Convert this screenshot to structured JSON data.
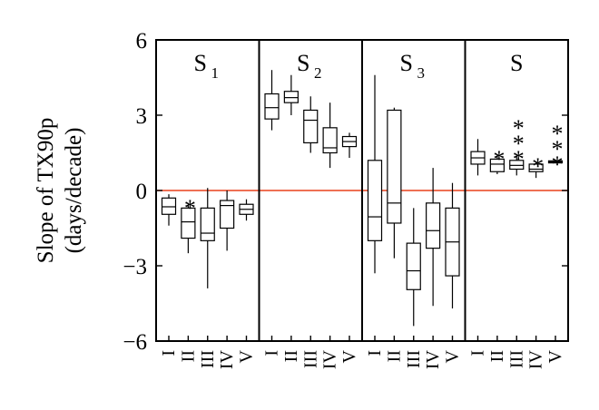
{
  "chart_data": {
    "type": "box",
    "ylabel": "Slope of TX90p",
    "ylabel_unit": "(days/decade)",
    "ylim": [
      -6,
      6
    ],
    "yticks": [
      "6",
      "3",
      "0",
      "−3",
      "−6"
    ],
    "reference_line": {
      "y": 0,
      "color": "#e8401c"
    },
    "categories": [
      "I",
      "II",
      "III",
      "IV",
      "V"
    ],
    "panels": [
      {
        "title": "S",
        "subscript": "1",
        "boxes": [
          {
            "category": "I",
            "low": -1.4,
            "q1": -0.95,
            "median": -0.65,
            "q3": -0.3,
            "high": -0.15,
            "significance": ""
          },
          {
            "category": "II",
            "low": -2.5,
            "q1": -1.9,
            "median": -1.25,
            "q3": -0.7,
            "high": -0.5,
            "significance": "*"
          },
          {
            "category": "III",
            "low": -3.9,
            "q1": -2.0,
            "median": -1.7,
            "q3": -0.7,
            "high": 0.1,
            "significance": ""
          },
          {
            "category": "IV",
            "low": -2.4,
            "q1": -1.5,
            "median": -0.6,
            "q3": -0.4,
            "high": 0.0,
            "significance": ""
          },
          {
            "category": "V",
            "low": -1.2,
            "q1": -0.95,
            "median": -0.75,
            "q3": -0.55,
            "high": -0.35,
            "significance": ""
          }
        ]
      },
      {
        "title": "S",
        "subscript": "2",
        "boxes": [
          {
            "category": "I",
            "low": 2.4,
            "q1": 2.85,
            "median": 3.3,
            "q3": 3.85,
            "high": 4.8,
            "significance": ""
          },
          {
            "category": "II",
            "low": 3.0,
            "q1": 3.5,
            "median": 3.7,
            "q3": 3.95,
            "high": 4.6,
            "significance": ""
          },
          {
            "category": "III",
            "low": 1.5,
            "q1": 1.9,
            "median": 2.8,
            "q3": 3.2,
            "high": 3.75,
            "significance": ""
          },
          {
            "category": "IV",
            "low": 0.9,
            "q1": 1.5,
            "median": 1.7,
            "q3": 2.5,
            "high": 3.5,
            "significance": ""
          },
          {
            "category": "V",
            "low": 1.3,
            "q1": 1.75,
            "median": 1.95,
            "q3": 2.15,
            "high": 2.3,
            "significance": ""
          }
        ]
      },
      {
        "title": "S",
        "subscript": "3",
        "boxes": [
          {
            "category": "I",
            "low": -3.3,
            "q1": -2.0,
            "median": -1.05,
            "q3": 1.2,
            "high": 4.6,
            "significance": ""
          },
          {
            "category": "II",
            "low": -2.7,
            "q1": -1.3,
            "median": -0.5,
            "q3": 3.2,
            "high": 3.3,
            "significance": ""
          },
          {
            "category": "III",
            "low": -5.4,
            "q1": -3.95,
            "median": -3.2,
            "q3": -2.1,
            "high": -0.7,
            "significance": ""
          },
          {
            "category": "IV",
            "low": -4.6,
            "q1": -2.3,
            "median": -1.6,
            "q3": -0.5,
            "high": 0.9,
            "significance": ""
          },
          {
            "category": "V",
            "low": -4.7,
            "q1": -3.4,
            "median": -2.05,
            "q3": -0.7,
            "high": 0.3,
            "significance": ""
          }
        ]
      },
      {
        "title": "S",
        "subscript": "",
        "boxes": [
          {
            "category": "I",
            "low": 0.6,
            "q1": 1.05,
            "median": 1.3,
            "q3": 1.55,
            "high": 2.05,
            "significance": ""
          },
          {
            "category": "II",
            "low": 0.65,
            "q1": 0.75,
            "median": 1.05,
            "q3": 1.25,
            "high": 1.45,
            "significance": "*"
          },
          {
            "category": "III",
            "low": 0.6,
            "q1": 0.85,
            "median": 1.0,
            "q3": 1.2,
            "high": 1.45,
            "significance": "***"
          },
          {
            "category": "IV",
            "low": 0.5,
            "q1": 0.75,
            "median": 0.85,
            "q3": 1.05,
            "high": 1.15,
            "significance": "*"
          },
          {
            "category": "V",
            "low": 1.08,
            "q1": 1.1,
            "median": 1.14,
            "q3": 1.18,
            "high": 1.22,
            "significance": "***"
          }
        ]
      }
    ]
  }
}
